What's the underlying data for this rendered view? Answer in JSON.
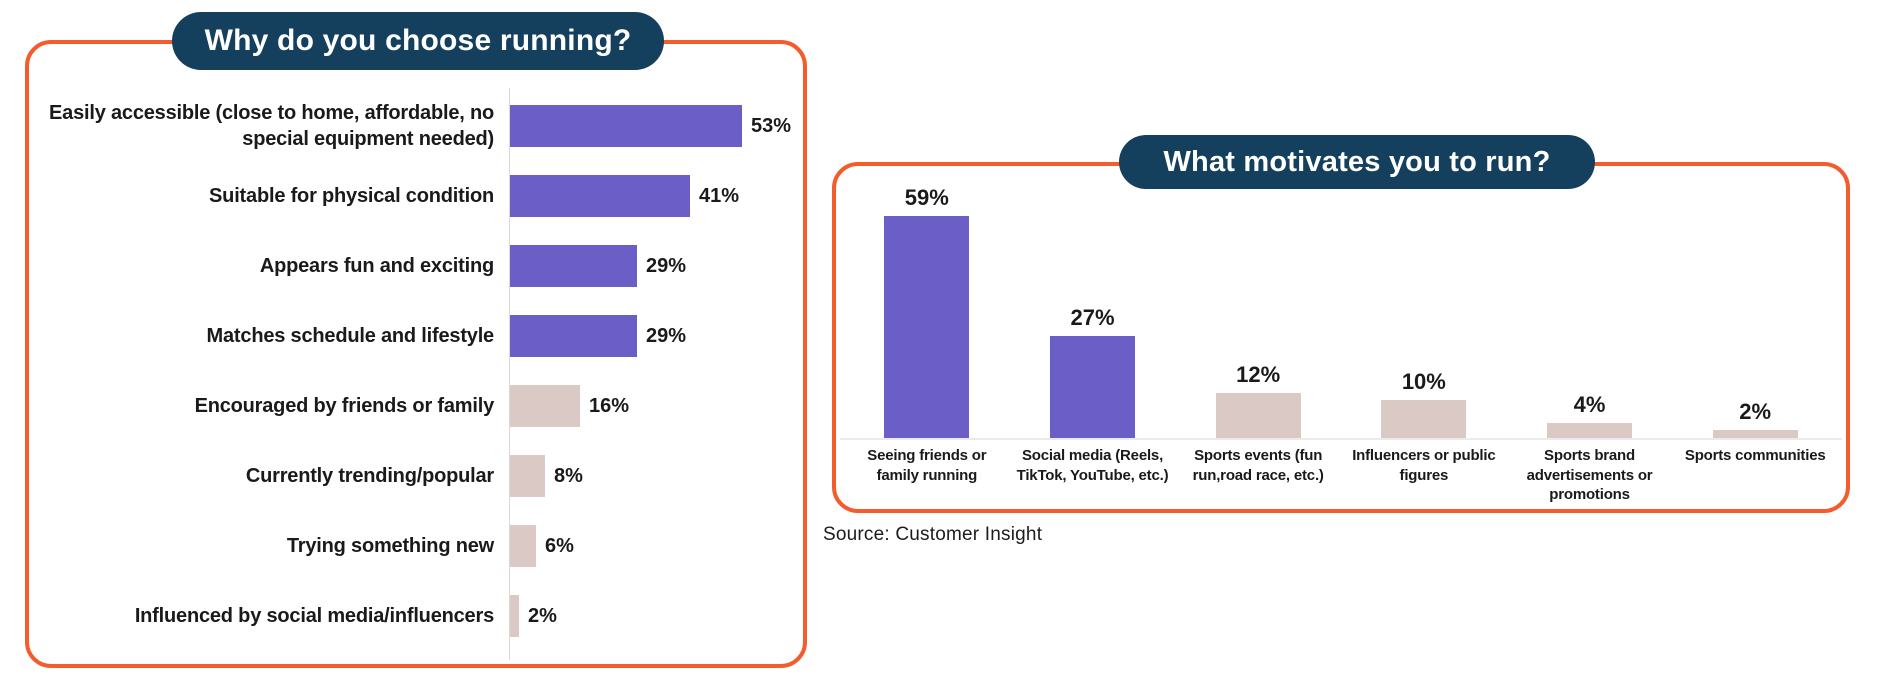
{
  "source": "Source: Customer Insight",
  "colors": {
    "purple": "#6B5FC7",
    "pink": "#DBC9C6",
    "border_orange": "#F45B2D",
    "pill_navy": "#14405E",
    "axis_gray": "#D9D9D9",
    "baseline_gray": "#ECEAEA",
    "text_dark": "#1A1A1A"
  },
  "chart_data": [
    {
      "type": "bar",
      "orientation": "horizontal",
      "title": "Why do you choose running?",
      "unit": "%",
      "xlim": [
        0,
        60
      ],
      "grid": false,
      "categories": [
        "Easily accessible (close to home, affordable, no special equipment needed)",
        "Suitable for physical condition",
        "Appears fun and exciting",
        "Matches schedule and lifestyle",
        "Encouraged by friends or family",
        "Currently trending/popular",
        "Trying something new",
        "Influenced by social media/influencers"
      ],
      "values": [
        53,
        41,
        29,
        29,
        16,
        8,
        6,
        2
      ],
      "value_labels": [
        "53%",
        "41%",
        "29%",
        "29%",
        "16%",
        "8%",
        "6%",
        "2%"
      ],
      "bar_colors": [
        "purple",
        "purple",
        "purple",
        "purple",
        "pink",
        "pink",
        "pink",
        "pink"
      ]
    },
    {
      "type": "bar",
      "orientation": "vertical",
      "title": "What motivates you to run?",
      "unit": "%",
      "ylim": [
        0,
        65
      ],
      "grid": false,
      "categories": [
        "Seeing friends or family running",
        "Social media (Reels, TikTok, YouTube, etc.)",
        "Sports events (fun run,road race, etc.)",
        "Influencers or public figures",
        "Sports brand advertisements or promotions",
        "Sports communities"
      ],
      "values": [
        59,
        27,
        12,
        10,
        4,
        2
      ],
      "value_labels": [
        "59%",
        "27%",
        "12%",
        "10%",
        "4%",
        "2%"
      ],
      "bar_colors": [
        "purple",
        "purple",
        "pink",
        "pink",
        "pink",
        "pink"
      ]
    }
  ]
}
